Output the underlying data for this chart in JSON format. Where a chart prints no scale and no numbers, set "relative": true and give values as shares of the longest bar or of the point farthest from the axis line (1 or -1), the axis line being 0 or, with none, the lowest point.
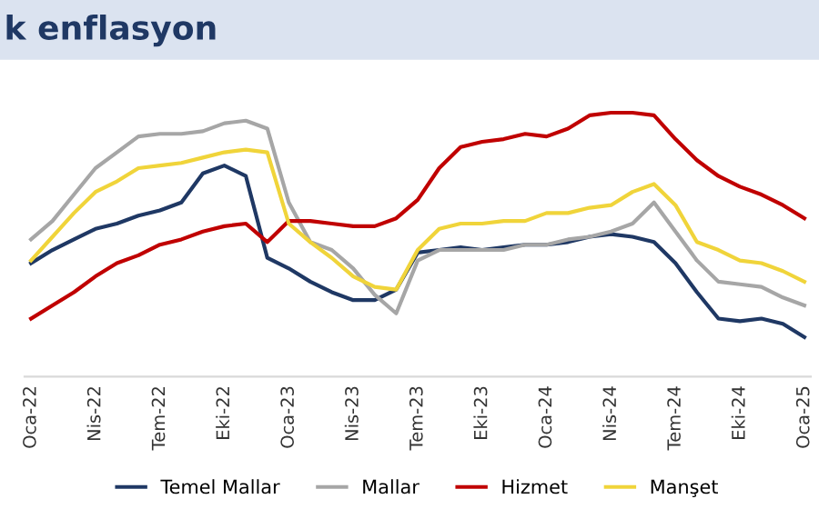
{
  "chart_data": {
    "type": "line",
    "title": "k enflasyon",
    "relative": true,
    "grid": false,
    "legend": "bottom",
    "marker": "none",
    "line_style": "solid",
    "categories": [
      "Oca-22",
      null,
      null,
      "Nis-22",
      null,
      null,
      "Tem-22",
      null,
      null,
      "Eki-22",
      null,
      null,
      "Oca-23",
      null,
      null,
      "Nis-23",
      null,
      null,
      "Tem-23",
      null,
      null,
      "Eki-23",
      null,
      null,
      "Oca-24",
      null,
      null,
      "Nis-24",
      null,
      null,
      "Tem-24",
      null,
      null,
      "Eki-24",
      null,
      null,
      "Oca-25"
    ],
    "series": [
      {
        "name": "Temel Mallar",
        "color": "#1f3864",
        "values": [
          0.43,
          0.48,
          0.52,
          0.56,
          0.58,
          0.61,
          0.63,
          0.66,
          0.77,
          0.8,
          0.76,
          0.45,
          0.41,
          0.36,
          0.32,
          0.29,
          0.29,
          0.33,
          0.47,
          0.48,
          0.49,
          0.48,
          0.49,
          0.5,
          0.5,
          0.51,
          0.53,
          0.54,
          0.53,
          0.51,
          0.43,
          0.32,
          0.22,
          0.21,
          0.22,
          0.2,
          0.15
        ]
      },
      {
        "name": "Mallar",
        "color": "#a6a6a6",
        "values": [
          0.52,
          0.59,
          0.69,
          0.79,
          0.85,
          0.91,
          0.92,
          0.92,
          0.93,
          0.96,
          0.97,
          0.94,
          0.66,
          0.51,
          0.48,
          0.41,
          0.31,
          0.24,
          0.44,
          0.48,
          0.48,
          0.48,
          0.48,
          0.5,
          0.5,
          0.52,
          0.53,
          0.55,
          0.58,
          0.66,
          0.55,
          0.44,
          0.36,
          0.35,
          0.34,
          0.3,
          0.27
        ]
      },
      {
        "name": "Hizmet",
        "color": "#c00000",
        "values": [
          0.22,
          0.27,
          0.32,
          0.38,
          0.43,
          0.46,
          0.5,
          0.52,
          0.55,
          0.57,
          0.58,
          0.51,
          0.59,
          0.59,
          0.58,
          0.57,
          0.57,
          0.6,
          0.67,
          0.79,
          0.87,
          0.89,
          0.9,
          0.92,
          0.91,
          0.94,
          0.99,
          1,
          1,
          0.99,
          0.9,
          0.82,
          0.76,
          0.72,
          0.69,
          0.65,
          0.6
        ]
      },
      {
        "name": "Manşet",
        "color": "#f0d43a",
        "values": [
          0.44,
          0.53,
          0.62,
          0.7,
          0.74,
          0.79,
          0.8,
          0.81,
          0.83,
          0.85,
          0.86,
          0.85,
          0.58,
          0.51,
          0.45,
          0.38,
          0.34,
          0.33,
          0.48,
          0.56,
          0.58,
          0.58,
          0.59,
          0.59,
          0.62,
          0.62,
          0.64,
          0.65,
          0.7,
          0.73,
          0.65,
          0.51,
          0.48,
          0.44,
          0.43,
          0.4,
          0.36
        ]
      }
    ]
  }
}
